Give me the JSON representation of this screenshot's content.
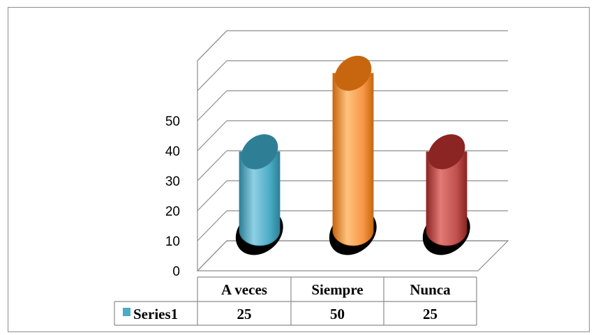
{
  "chart_data": {
    "type": "bar",
    "style": "3d-cylinder",
    "categories": [
      "A veces",
      "Siempre",
      "Nunca"
    ],
    "series": [
      {
        "name": "Series1",
        "values": [
          25,
          50,
          25
        ],
        "value_labels": [
          "25",
          "50",
          "25"
        ]
      }
    ],
    "bar_colors": [
      "#4bacc6",
      "#f79646",
      "#c0504d"
    ],
    "bar_colors_dark": [
      "#2e7f96",
      "#c8660f",
      "#8b2523"
    ],
    "bar_colors_light": [
      "#8fd0e3",
      "#ffc37f",
      "#e27a76"
    ],
    "ylim": [
      0,
      50
    ],
    "yticks": [
      0,
      10,
      20,
      30,
      40,
      50
    ],
    "ytick_labels": [
      "0",
      "10",
      "20",
      "30",
      "40",
      "50"
    ],
    "title": "",
    "xlabel": "",
    "ylabel": "",
    "grid": true,
    "data_table": true
  },
  "legend_key_color": "#4bacc6"
}
